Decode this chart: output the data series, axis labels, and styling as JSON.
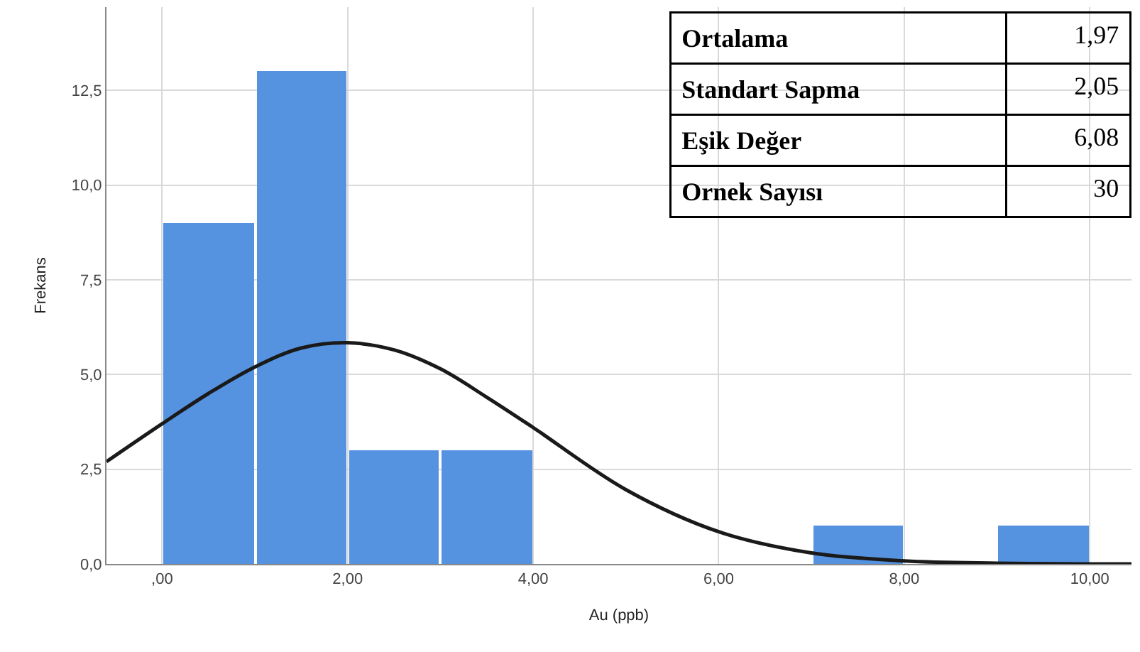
{
  "chart_data": {
    "type": "histogram",
    "xlabel": "Au (ppb)",
    "ylabel": "Frekans",
    "bins": [
      0,
      1,
      2,
      3,
      4,
      5,
      6,
      7,
      8,
      9,
      10
    ],
    "values": [
      9,
      13,
      3,
      3,
      0,
      0,
      0,
      1,
      0,
      1
    ],
    "color": "#5592e0",
    "series": [
      {
        "type": "line",
        "color": "#1a1a1a",
        "x": [
          -0.6,
          0,
          0.5,
          1,
          1.5,
          2,
          2.5,
          3,
          3.5,
          4,
          5,
          6,
          7,
          8,
          9,
          10,
          10.45
        ],
        "values": [
          2.7,
          3.7,
          4.5,
          5.2,
          5.7,
          5.84,
          5.65,
          5.15,
          4.4,
          3.6,
          1.96,
          0.85,
          0.29,
          0.08,
          0.02,
          0,
          0
        ]
      }
    ],
    "xlim": [
      -0.6,
      10.45
    ],
    "ylim": [
      0,
      14.7
    ],
    "xticks": [
      {
        "value": 0,
        "label": ",00"
      },
      {
        "value": 2,
        "label": "2,00"
      },
      {
        "value": 4,
        "label": "4,00"
      },
      {
        "value": 6,
        "label": "6,00"
      },
      {
        "value": 8,
        "label": "8,00"
      },
      {
        "value": 10,
        "label": "10,00"
      }
    ],
    "yticks": [
      {
        "value": 0,
        "label": "0,0"
      },
      {
        "value": 2.5,
        "label": "2,5"
      },
      {
        "value": 5,
        "label": "5,0"
      },
      {
        "value": 7.5,
        "label": "7,5"
      },
      {
        "value": 10,
        "label": "10,0"
      },
      {
        "value": 12.5,
        "label": "12,5"
      }
    ],
    "grid": true,
    "annotations": [
      "Ortalama",
      "1,97",
      "Standart Sapma",
      "2,05",
      "Eşik Değer",
      "6,08",
      "Ornek Sayısı",
      "30"
    ]
  }
}
